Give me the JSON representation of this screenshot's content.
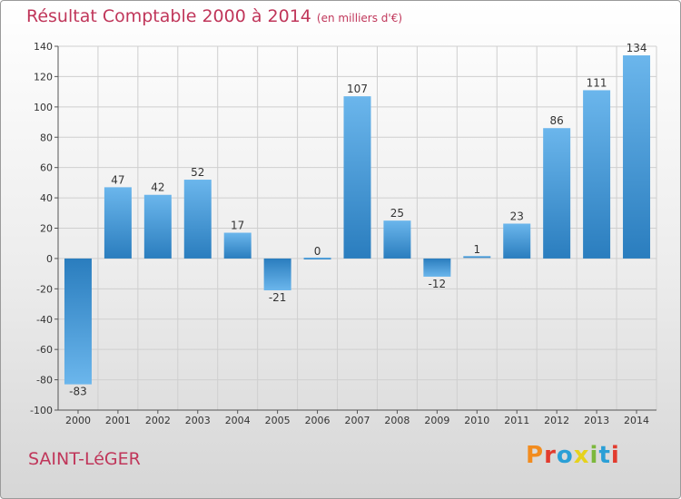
{
  "header": {
    "title": "Résultat Comptable 2000 à 2014",
    "unit": "(en milliers d'€)"
  },
  "footer": {
    "place": "SAINT-LéGER",
    "brand": "Proxiti"
  },
  "colors": {
    "title": "#c0365a",
    "bar_light": "#6bb6ec",
    "bar_dark": "#2a7dbe",
    "grid": "#cfcfcf",
    "brand": [
      "#f28c1f",
      "#e23b2e",
      "#2a9fd6",
      "#e6d21c",
      "#7cb83c",
      "#2a9fd6",
      "#e23b2e"
    ]
  },
  "chart_data": {
    "type": "bar",
    "title": "Résultat Comptable 2000 à 2014",
    "xlabel": "",
    "ylabel": "",
    "ylim": [
      -100,
      140
    ],
    "yticks": [
      -100,
      -80,
      -60,
      -40,
      -20,
      0,
      20,
      40,
      60,
      80,
      100,
      120,
      140
    ],
    "grid": true,
    "categories": [
      "2000",
      "2001",
      "2002",
      "2003",
      "2004",
      "2005",
      "2006",
      "2007",
      "2008",
      "2009",
      "2010",
      "2011",
      "2012",
      "2013",
      "2014"
    ],
    "values": [
      -83,
      47,
      42,
      52,
      17,
      -21,
      0,
      107,
      25,
      -12,
      1,
      23,
      86,
      111,
      134
    ]
  }
}
